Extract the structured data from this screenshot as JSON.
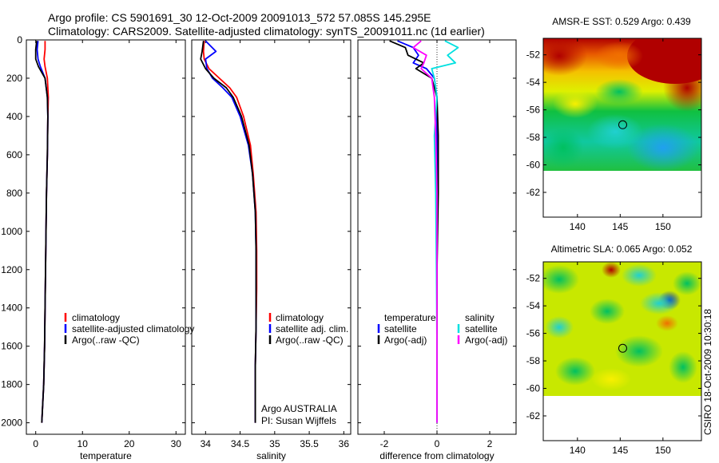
{
  "header": {
    "line1": "Argo profile: CS 5901691_30 12-Oct-2009 20091013_572 57.085S 145.295E",
    "line2": "Climatology: CARS2009. Satellite-adjusted climatology: synTS_20091011.nc (1d earlier)"
  },
  "chart_data": [
    {
      "id": "temperature",
      "type": "line",
      "xlabel": "temperature",
      "ylabel": "",
      "xlim": [
        -2,
        32
      ],
      "ylim": [
        2060,
        0
      ],
      "y_inverted": true,
      "xticks": [
        0,
        10,
        20,
        30
      ],
      "yticks": [
        0,
        200,
        400,
        600,
        800,
        1000,
        1200,
        1400,
        1600,
        1800,
        2000
      ],
      "legend": {
        "position": "middle-right",
        "entries": [
          "climatology",
          "satellite-adjusted climatology",
          "Argo(..raw -QC)"
        ]
      },
      "series": [
        {
          "name": "climatology",
          "color": "#ff0000",
          "x": [
            2.0,
            2.0,
            1.8,
            2.0,
            2.5,
            2.7,
            2.6,
            2.5,
            2.3,
            2.2,
            2.1,
            2.0,
            1.9,
            1.7,
            1.5,
            1.3
          ],
          "y": [
            5,
            50,
            100,
            140,
            200,
            300,
            400,
            600,
            800,
            1000,
            1200,
            1400,
            1600,
            1800,
            1900,
            2000
          ]
        },
        {
          "name": "satellite-adjusted climatology",
          "color": "#0000ff",
          "x": [
            0.5,
            0.3,
            0.5,
            1.0,
            2.0,
            2.5,
            2.6,
            2.5,
            2.3,
            2.2,
            2.1,
            2.0,
            1.9,
            1.7,
            1.5,
            1.3
          ],
          "y": [
            5,
            50,
            100,
            140,
            200,
            300,
            400,
            600,
            800,
            1000,
            1200,
            1400,
            1600,
            1800,
            1900,
            2000
          ]
        },
        {
          "name": "Argo(..raw -QC)",
          "color": "#000000",
          "x": [
            0.2,
            0.0,
            0.0,
            0.6,
            2.0,
            2.5,
            2.6,
            2.5,
            2.3,
            2.2,
            2.1,
            2.0,
            1.9,
            1.7,
            1.5,
            1.3
          ],
          "y": [
            5,
            50,
            100,
            140,
            200,
            300,
            400,
            600,
            800,
            1000,
            1200,
            1400,
            1600,
            1800,
            1900,
            2000
          ]
        }
      ]
    },
    {
      "id": "salinity",
      "type": "line",
      "xlabel": "salinity",
      "ylabel": "",
      "xlim": [
        33.8,
        36.1
      ],
      "ylim": [
        2060,
        0
      ],
      "y_inverted": true,
      "xticks": [
        34,
        34.5,
        35,
        35.5,
        36
      ],
      "xtick_labels": [
        "34",
        "34.5",
        "35",
        "35.5",
        "36"
      ],
      "yticks": [
        0,
        200,
        400,
        600,
        800,
        1000,
        1200,
        1400,
        1600,
        1800,
        2000
      ],
      "legend": {
        "position": "middle-right",
        "entries": [
          "climatology",
          "satellite adj. clim.",
          "Argo(..raw -QC)"
        ]
      },
      "annotation": [
        "Argo AUSTRALIA",
        "PI: Susan Wijffels"
      ],
      "series": [
        {
          "name": "climatology",
          "color": "#ff0000",
          "x": [
            33.98,
            33.97,
            33.98,
            34.05,
            34.2,
            34.35,
            34.45,
            34.55,
            34.65,
            34.69,
            34.73,
            34.74,
            34.74,
            34.73,
            34.72,
            34.72,
            34.72
          ],
          "y": [
            5,
            60,
            100,
            150,
            200,
            250,
            300,
            400,
            550,
            700,
            900,
            1100,
            1300,
            1500,
            1700,
            1900,
            2000
          ]
        },
        {
          "name": "satellite adj. clim.",
          "color": "#0000ff",
          "x": [
            34.0,
            34.15,
            34.0,
            34.02,
            34.1,
            34.25,
            34.38,
            34.5,
            34.62,
            34.68,
            34.72,
            34.73,
            34.73,
            34.73,
            34.72,
            34.72,
            34.72
          ],
          "y": [
            5,
            60,
            100,
            150,
            200,
            250,
            300,
            400,
            550,
            700,
            900,
            1100,
            1300,
            1500,
            1700,
            1900,
            2000
          ]
        },
        {
          "name": "Argo(..raw -QC)",
          "color": "#000000",
          "x": [
            33.97,
            33.95,
            33.93,
            34.0,
            34.12,
            34.3,
            34.4,
            34.52,
            34.63,
            34.68,
            34.72,
            34.73,
            34.73,
            34.73,
            34.72,
            34.72,
            34.72
          ],
          "y": [
            5,
            60,
            100,
            150,
            200,
            250,
            300,
            400,
            550,
            700,
            900,
            1100,
            1300,
            1500,
            1700,
            1900,
            2000
          ]
        }
      ]
    },
    {
      "id": "difference",
      "type": "line",
      "xlabel": "difference from climatology",
      "ylabel": "",
      "xlim": [
        -3,
        3
      ],
      "ylim": [
        2060,
        0
      ],
      "y_inverted": true,
      "xticks": [
        -2,
        0,
        2
      ],
      "yticks": [
        0,
        200,
        400,
        600,
        800,
        1000,
        1200,
        1400,
        1600,
        1800,
        2000
      ],
      "legend": {
        "position": "middle",
        "columns": [
          {
            "title": "temperature",
            "entries": [
              "satellite",
              "Argo(-adj)"
            ]
          },
          {
            "title": "salinity",
            "entries": [
              "satellite",
              "Argo(-adj)"
            ]
          }
        ]
      },
      "series": [
        {
          "name": "temperature satellite",
          "color": "#0000ff",
          "x": [
            -1.5,
            -0.9,
            -0.7,
            -0.9,
            -0.4,
            -0.1,
            0.0,
            0.0,
            0.0,
            0.0,
            0.0,
            0.0
          ],
          "y": [
            5,
            40,
            80,
            120,
            150,
            200,
            300,
            500,
            800,
            1200,
            1600,
            2000
          ]
        },
        {
          "name": "temperature Argo(-adj)",
          "color": "#000000",
          "x": [
            -1.8,
            -1.2,
            -1.1,
            -0.5,
            -0.8,
            -0.2,
            0.0,
            0.05,
            0.05,
            0.0,
            0.0,
            0.0
          ],
          "y": [
            5,
            40,
            80,
            120,
            150,
            200,
            300,
            500,
            800,
            1200,
            1600,
            2000
          ]
        },
        {
          "name": "salinity satellite",
          "color": "#00e0e0",
          "x": [
            0.3,
            0.8,
            0.4,
            0.7,
            -0.2,
            -0.1,
            0.0,
            -0.1,
            -0.05,
            -0.02,
            0.0,
            0.0
          ],
          "y": [
            5,
            40,
            80,
            120,
            150,
            200,
            300,
            500,
            800,
            1200,
            1600,
            2000
          ]
        },
        {
          "name": "salinity Argo(-adj)",
          "color": "#ff00ff",
          "x": [
            -0.6,
            -0.9,
            -0.4,
            -0.5,
            -0.6,
            -0.2,
            -0.1,
            -0.05,
            0.0,
            0.0,
            0.0,
            0.0
          ],
          "y": [
            5,
            40,
            80,
            120,
            150,
            200,
            300,
            500,
            800,
            1200,
            1600,
            2000
          ]
        }
      ]
    },
    {
      "id": "sst-map",
      "type": "heatmap",
      "title": "AMSR-E SST: 0.529 Argo: 0.439",
      "xlim": [
        136,
        154.5
      ],
      "ylim": [
        -63.8,
        -50.8
      ],
      "xticks": [
        140,
        145,
        150
      ],
      "yticks": [
        -52,
        -54,
        -56,
        -58,
        -60,
        -62
      ],
      "marker": {
        "lon": 145.295,
        "lat": -57.085
      },
      "data_extent_lat_min": -60
    },
    {
      "id": "sla-map",
      "type": "heatmap",
      "title": "Altimetric SLA: 0.065 Argo: 0.052",
      "xlim": [
        136,
        154.5
      ],
      "ylim": [
        -63.8,
        -50.8
      ],
      "xticks": [
        140,
        145,
        150
      ],
      "yticks": [
        -52,
        -54,
        -56,
        -58,
        -60,
        -62
      ],
      "marker": {
        "lon": 145.295,
        "lat": -57.085
      },
      "data_extent_lat_min": -60
    }
  ],
  "footer": {
    "stamp": "CSIRO 18-Oct-2009 10:30:18"
  }
}
